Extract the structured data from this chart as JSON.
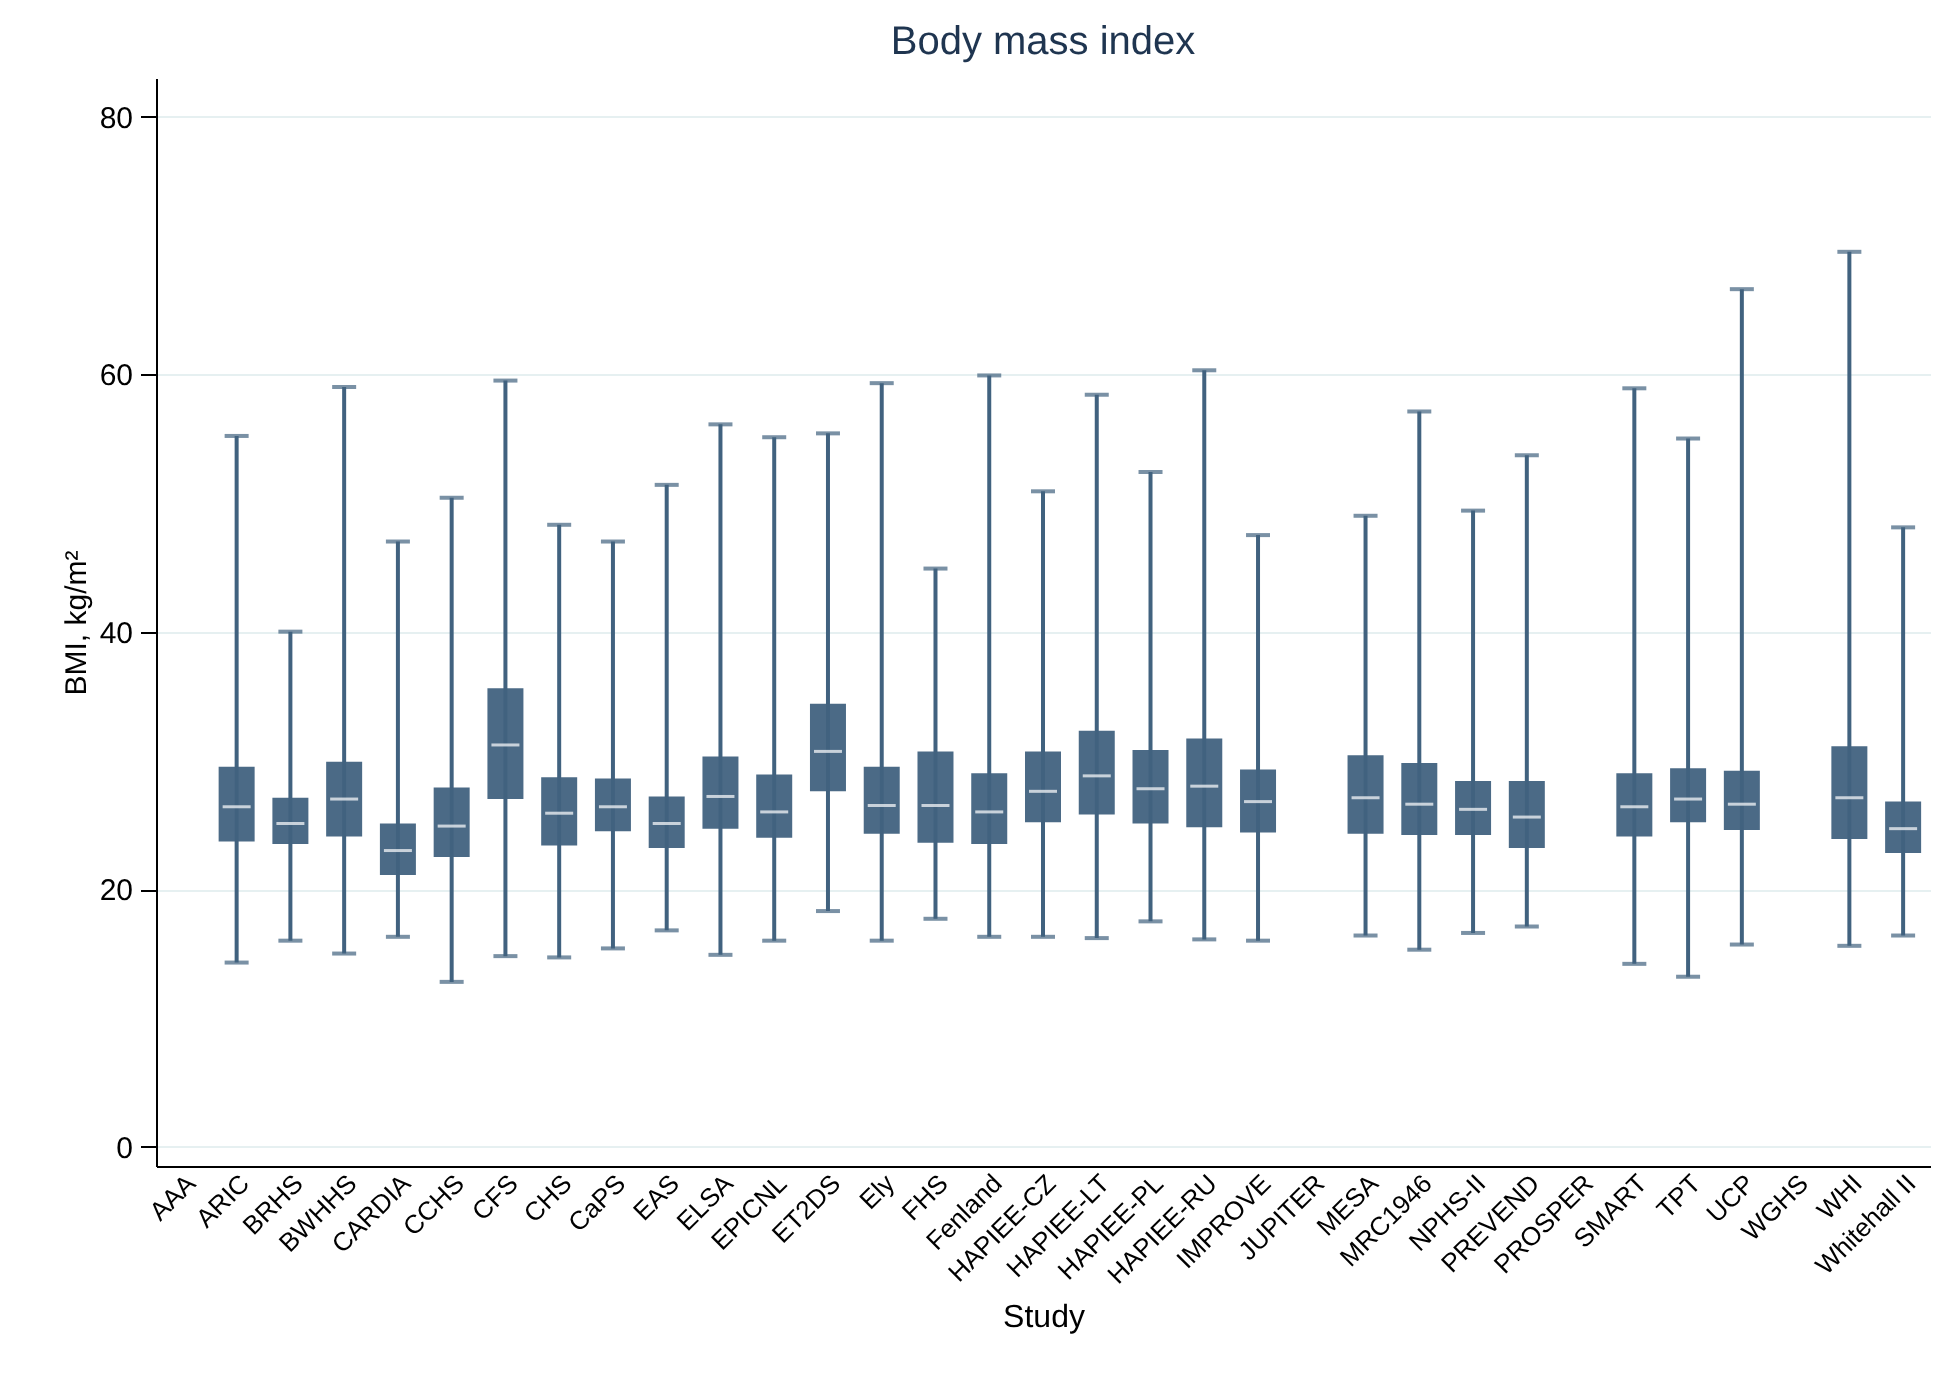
{
  "chart_data": {
    "type": "box",
    "title": "Body mass index",
    "xlabel": "Study",
    "ylabel": "BMI, kg/m²",
    "categories": [
      "AAA",
      "ARIC",
      "BRHS",
      "BWHHS",
      "CARDIA",
      "CCHS",
      "CFS",
      "CHS",
      "CaPS",
      "EAS",
      "ELSA",
      "EPICNL",
      "ET2DS",
      "Ely",
      "FHS",
      "Fenland",
      "HAPIEE-CZ",
      "HAPIEE-LT",
      "HAPIEE-PL",
      "HAPIEE-RU",
      "IMPROVE",
      "JUPITER",
      "MESA",
      "MRC1946",
      "NPHS-II",
      "PREVEND",
      "PROSPER",
      "SMART",
      "TPT",
      "UCP",
      "WGHS",
      "WHI",
      "Whitehall II"
    ],
    "boxes": [
      null,
      {
        "low": 14.3,
        "q1": 23.7,
        "median": 26.4,
        "q3": 29.5,
        "high": 55.2
      },
      {
        "low": 16,
        "q1": 23.5,
        "median": 25.1,
        "q3": 27.1,
        "high": 40
      },
      {
        "low": 15,
        "q1": 24.1,
        "median": 27,
        "q3": 29.9,
        "high": 59
      },
      {
        "low": 16.3,
        "q1": 21.1,
        "median": 23,
        "q3": 25.1,
        "high": 47
      },
      {
        "low": 12.8,
        "q1": 22.5,
        "median": 24.9,
        "q3": 27.9,
        "high": 50.4
      },
      {
        "low": 14.8,
        "q1": 27,
        "median": 31.2,
        "q3": 35.6,
        "high": 59.5
      },
      {
        "low": 14.7,
        "q1": 23.4,
        "median": 25.9,
        "q3": 28.7,
        "high": 48.3
      },
      {
        "low": 15.4,
        "q1": 24.5,
        "median": 26.4,
        "q3": 28.6,
        "high": 47
      },
      {
        "low": 16.8,
        "q1": 23.2,
        "median": 25.1,
        "q3": 27.2,
        "high": 51.4
      },
      {
        "low": 14.9,
        "q1": 24.7,
        "median": 27.2,
        "q3": 30.3,
        "high": 56.1
      },
      {
        "low": 16,
        "q1": 24,
        "median": 26,
        "q3": 28.9,
        "high": 55.1
      },
      {
        "low": 18.3,
        "q1": 27.6,
        "median": 30.7,
        "q3": 34.4,
        "high": 55.4
      },
      {
        "low": 16,
        "q1": 24.3,
        "median": 26.5,
        "q3": 29.5,
        "high": 59.3
      },
      {
        "low": 17.7,
        "q1": 23.6,
        "median": 26.5,
        "q3": 30.7,
        "high": 44.9
      },
      {
        "low": 16.3,
        "q1": 23.5,
        "median": 26,
        "q3": 29,
        "high": 59.9
      },
      {
        "low": 16.3,
        "q1": 25.2,
        "median": 27.6,
        "q3": 30.7,
        "high": 50.9
      },
      {
        "low": 16.2,
        "q1": 25.8,
        "median": 28.8,
        "q3": 32.3,
        "high": 58.4
      },
      {
        "low": 17.5,
        "q1": 25.1,
        "median": 27.8,
        "q3": 30.8,
        "high": 52.4
      },
      {
        "low": 16.1,
        "q1": 24.8,
        "median": 28,
        "q3": 31.7,
        "high": 60.3
      },
      {
        "low": 16,
        "q1": 24.4,
        "median": 26.8,
        "q3": 29.3,
        "high": 47.5
      },
      null,
      {
        "low": 16.4,
        "q1": 24.3,
        "median": 27.1,
        "q3": 30.4,
        "high": 49
      },
      {
        "low": 15.3,
        "q1": 24.2,
        "median": 26.6,
        "q3": 29.8,
        "high": 57.1
      },
      {
        "low": 16.6,
        "q1": 24.2,
        "median": 26.2,
        "q3": 28.4,
        "high": 49.4
      },
      {
        "low": 17.1,
        "q1": 23.2,
        "median": 25.6,
        "q3": 28.4,
        "high": 53.7
      },
      null,
      {
        "low": 14.2,
        "q1": 24.1,
        "median": 26.4,
        "q3": 29,
        "high": 58.9
      },
      {
        "low": 13.2,
        "q1": 25.2,
        "median": 27,
        "q3": 29.4,
        "high": 55
      },
      {
        "low": 15.7,
        "q1": 24.6,
        "median": 26.6,
        "q3": 29.2,
        "high": 66.6
      },
      null,
      {
        "low": 15.6,
        "q1": 23.9,
        "median": 27.1,
        "q3": 31.1,
        "high": 69.5
      },
      {
        "low": 16.4,
        "q1": 22.8,
        "median": 24.7,
        "q3": 26.8,
        "high": 48.1
      }
    ],
    "color": "#41627f",
    "ylim": [
      -1.5,
      83
    ],
    "yticks": [
      0,
      20,
      40,
      60,
      80
    ],
    "grid": "y"
  }
}
